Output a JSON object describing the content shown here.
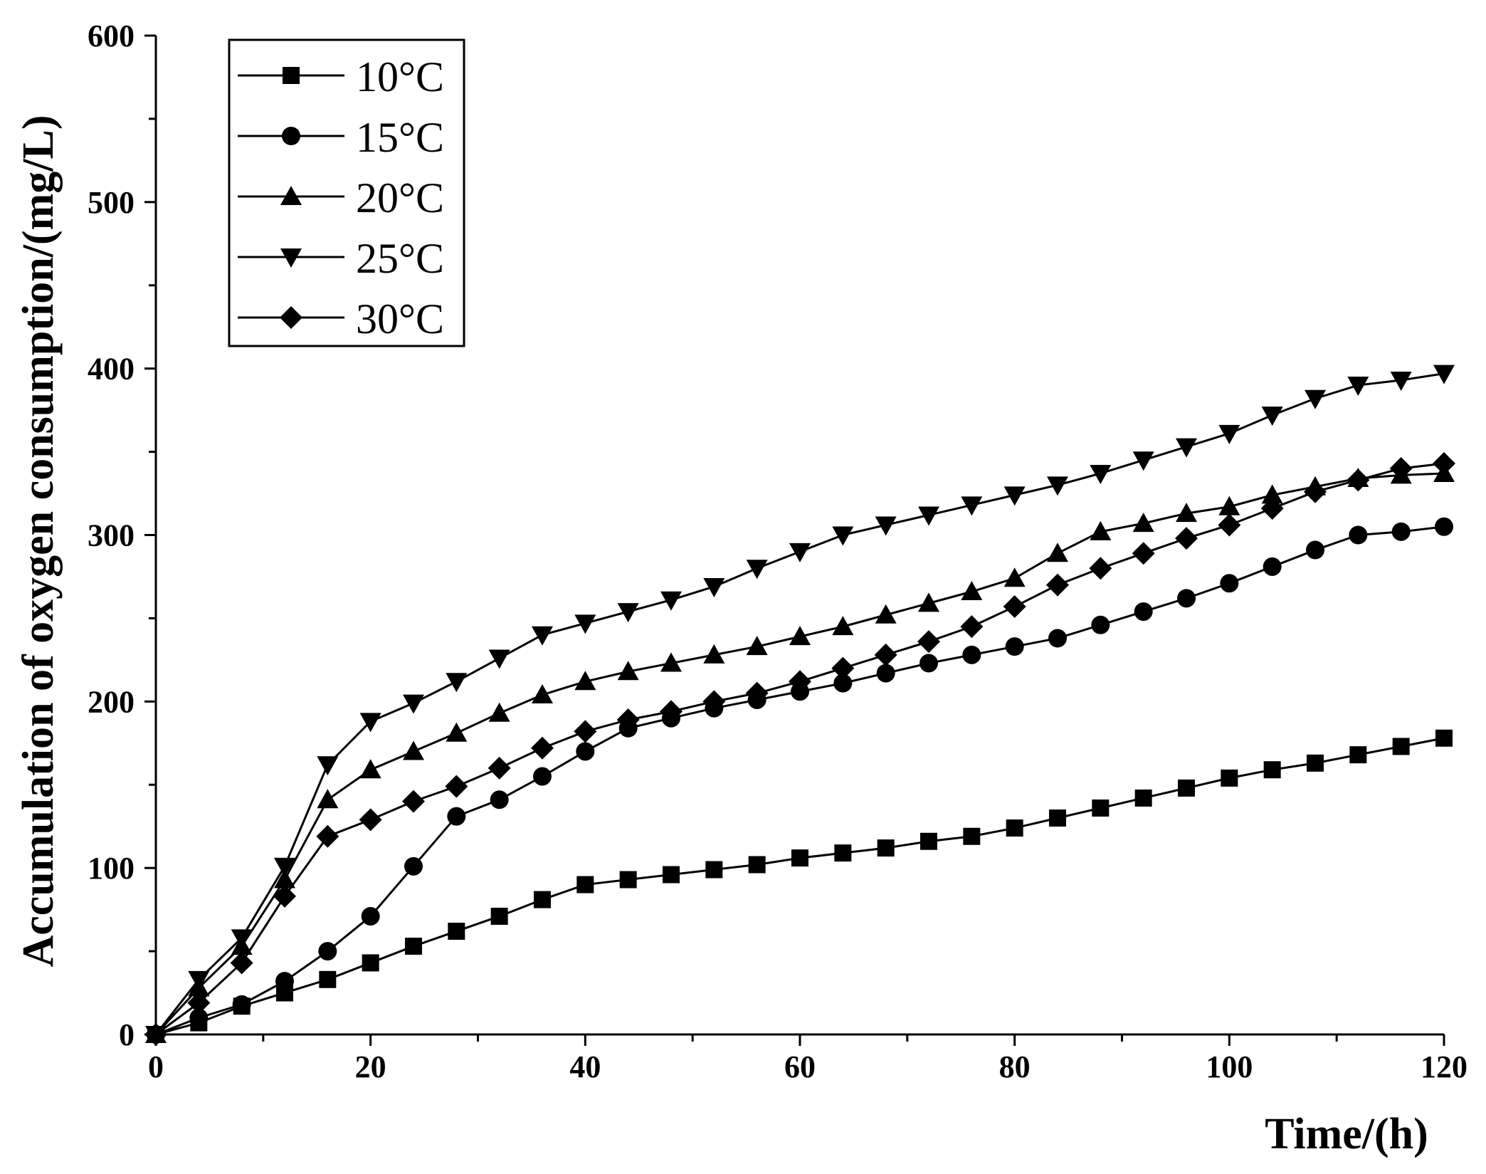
{
  "chart_data": {
    "type": "line",
    "title": "",
    "xlabel": "Time/(h)",
    "ylabel": "Accumulation of oxygen consumption/(mg/L)",
    "xlim": [
      0,
      120
    ],
    "ylim": [
      0,
      600
    ],
    "x_ticks": [
      0,
      20,
      40,
      60,
      80,
      100,
      120
    ],
    "y_ticks": [
      0,
      100,
      200,
      300,
      400,
      500,
      600
    ],
    "grid": false,
    "legend_position": "top-left",
    "x": [
      0,
      4,
      8,
      12,
      16,
      20,
      24,
      28,
      32,
      36,
      40,
      44,
      48,
      52,
      56,
      60,
      64,
      68,
      72,
      76,
      80,
      84,
      88,
      92,
      96,
      100,
      104,
      108,
      112,
      116,
      120
    ],
    "series": [
      {
        "name": "10°C",
        "marker": "square",
        "values": [
          0,
          7,
          17,
          25,
          33,
          43,
          53,
          62,
          71,
          81,
          90,
          93,
          96,
          99,
          102,
          106,
          109,
          112,
          116,
          119,
          124,
          130,
          136,
          142,
          148,
          154,
          159,
          163,
          168,
          173,
          178
        ]
      },
      {
        "name": "15°C",
        "marker": "circle",
        "values": [
          0,
          10,
          18,
          32,
          50,
          71,
          101,
          131,
          141,
          155,
          170,
          184,
          190,
          196,
          201,
          206,
          211,
          217,
          223,
          228,
          233,
          238,
          246,
          254,
          262,
          271,
          281,
          291,
          300,
          302,
          305
        ]
      },
      {
        "name": "20°C",
        "marker": "triangle-up",
        "values": [
          0,
          28,
          53,
          93,
          141,
          159,
          170,
          181,
          193,
          204,
          212,
          218,
          223,
          228,
          233,
          239,
          245,
          252,
          259,
          266,
          274,
          289,
          302,
          307,
          313,
          317,
          324,
          329,
          334,
          336,
          337
        ]
      },
      {
        "name": "25°C",
        "marker": "triangle-down",
        "values": [
          0,
          33,
          58,
          101,
          162,
          188,
          199,
          212,
          226,
          240,
          247,
          254,
          261,
          269,
          280,
          290,
          300,
          306,
          312,
          318,
          324,
          330,
          337,
          345,
          353,
          361,
          372,
          382,
          390,
          393,
          397
        ]
      },
      {
        "name": "30°C",
        "marker": "diamond",
        "values": [
          0,
          19,
          43,
          83,
          119,
          129,
          140,
          149,
          160,
          172,
          182,
          189,
          194,
          200,
          205,
          212,
          220,
          228,
          236,
          245,
          257,
          270,
          280,
          289,
          298,
          306,
          316,
          326,
          333,
          340,
          343
        ]
      }
    ]
  }
}
